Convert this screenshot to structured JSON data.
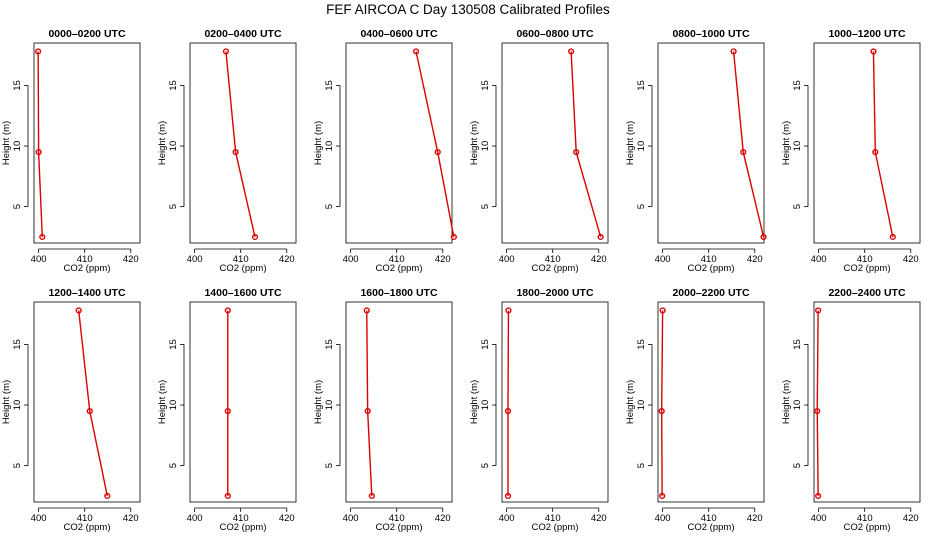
{
  "figure": {
    "title": "FEF AIRCOA C  Day 130508  Calibrated Profiles"
  },
  "colors": {
    "series": "#dd0000",
    "axes": "#000000",
    "background": "#ffffff"
  },
  "chart_data": [
    {
      "type": "line",
      "title": "0000–0200 UTC",
      "xlabel": "CO2 (ppm)",
      "ylabel": "Height (m)",
      "xlim": [
        399,
        422
      ],
      "ylim": [
        2,
        18.5
      ],
      "xticks": [
        400,
        410,
        420
      ],
      "yticks": [
        5,
        10,
        15
      ],
      "x": [
        400.8,
        400.0,
        399.9
      ],
      "y": [
        2.5,
        9.5,
        17.8
      ]
    },
    {
      "type": "line",
      "title": "0200–0400 UTC",
      "xlabel": "CO2 (ppm)",
      "ylabel": "Height (m)",
      "xlim": [
        399,
        422
      ],
      "ylim": [
        2,
        18.5
      ],
      "xticks": [
        400,
        410,
        420
      ],
      "yticks": [
        5,
        10,
        15
      ],
      "x": [
        413.1,
        408.9,
        406.8
      ],
      "y": [
        2.5,
        9.5,
        17.8
      ]
    },
    {
      "type": "line",
      "title": "0400–0600 UTC",
      "xlabel": "CO2 (ppm)",
      "ylabel": "Height (m)",
      "xlim": [
        399,
        422
      ],
      "ylim": [
        2,
        18.5
      ],
      "xticks": [
        400,
        410,
        420
      ],
      "yticks": [
        5,
        10,
        15
      ],
      "x": [
        422.4,
        418.9,
        414.2
      ],
      "y": [
        2.5,
        9.5,
        17.8
      ]
    },
    {
      "type": "line",
      "title": "0600–0800 UTC",
      "xlabel": "CO2 (ppm)",
      "ylabel": "Height (m)",
      "xlim": [
        399,
        422
      ],
      "ylim": [
        2,
        18.5
      ],
      "xticks": [
        400,
        410,
        420
      ],
      "yticks": [
        5,
        10,
        15
      ],
      "x": [
        420.4,
        415.1,
        414.0
      ],
      "y": [
        2.5,
        9.5,
        17.8
      ]
    },
    {
      "type": "line",
      "title": "0800–1000 UTC",
      "xlabel": "CO2 (ppm)",
      "ylabel": "Height (m)",
      "xlim": [
        399,
        422
      ],
      "ylim": [
        2,
        18.5
      ],
      "xticks": [
        400,
        410,
        420
      ],
      "yticks": [
        5,
        10,
        15
      ],
      "x": [
        421.9,
        417.5,
        415.4
      ],
      "y": [
        2.5,
        9.5,
        17.8
      ]
    },
    {
      "type": "line",
      "title": "1000–1200 UTC",
      "xlabel": "CO2 (ppm)",
      "ylabel": "Height (m)",
      "xlim": [
        399,
        422
      ],
      "ylim": [
        2,
        18.5
      ],
      "xticks": [
        400,
        410,
        420
      ],
      "yticks": [
        5,
        10,
        15
      ],
      "x": [
        416.1,
        412.3,
        411.9
      ],
      "y": [
        2.5,
        9.5,
        17.8
      ]
    },
    {
      "type": "line",
      "title": "1200–1400 UTC",
      "xlabel": "CO2 (ppm)",
      "ylabel": "Height (m)",
      "xlim": [
        399,
        422
      ],
      "ylim": [
        2,
        18.5
      ],
      "xticks": [
        400,
        410,
        420
      ],
      "yticks": [
        5,
        10,
        15
      ],
      "x": [
        414.9,
        411.1,
        408.7
      ],
      "y": [
        2.5,
        9.5,
        17.8
      ]
    },
    {
      "type": "line",
      "title": "1400–1600 UTC",
      "xlabel": "CO2 (ppm)",
      "ylabel": "Height (m)",
      "xlim": [
        399,
        422
      ],
      "ylim": [
        2,
        18.5
      ],
      "xticks": [
        400,
        410,
        420
      ],
      "yticks": [
        5,
        10,
        15
      ],
      "x": [
        407.2,
        407.2,
        407.2
      ],
      "y": [
        2.5,
        9.5,
        17.8
      ]
    },
    {
      "type": "line",
      "title": "1600–1800 UTC",
      "xlabel": "CO2 (ppm)",
      "ylabel": "Height (m)",
      "xlim": [
        399,
        422
      ],
      "ylim": [
        2,
        18.5
      ],
      "xticks": [
        400,
        410,
        420
      ],
      "yticks": [
        5,
        10,
        15
      ],
      "x": [
        404.6,
        403.7,
        403.5
      ],
      "y": [
        2.5,
        9.5,
        17.8
      ]
    },
    {
      "type": "line",
      "title": "1800–2000 UTC",
      "xlabel": "CO2 (ppm)",
      "ylabel": "Height (m)",
      "xlim": [
        399,
        422
      ],
      "ylim": [
        2,
        18.5
      ],
      "xticks": [
        400,
        410,
        420
      ],
      "yticks": [
        5,
        10,
        15
      ],
      "x": [
        400.3,
        400.3,
        400.4
      ],
      "y": [
        2.5,
        9.5,
        17.8
      ]
    },
    {
      "type": "line",
      "title": "2000–2200 UTC",
      "xlabel": "CO2 (ppm)",
      "ylabel": "Height (m)",
      "xlim": [
        399,
        422
      ],
      "ylim": [
        2,
        18.5
      ],
      "xticks": [
        400,
        410,
        420
      ],
      "yticks": [
        5,
        10,
        15
      ],
      "x": [
        399.9,
        399.8,
        400.0
      ],
      "y": [
        2.5,
        9.5,
        17.8
      ]
    },
    {
      "type": "line",
      "title": "2200–2400 UTC",
      "xlabel": "CO2 (ppm)",
      "ylabel": "Height (m)",
      "xlim": [
        399,
        422
      ],
      "ylim": [
        2,
        18.5
      ],
      "xticks": [
        400,
        410,
        420
      ],
      "yticks": [
        5,
        10,
        15
      ],
      "x": [
        399.9,
        399.7,
        399.9
      ],
      "y": [
        2.5,
        9.5,
        17.8
      ]
    }
  ]
}
